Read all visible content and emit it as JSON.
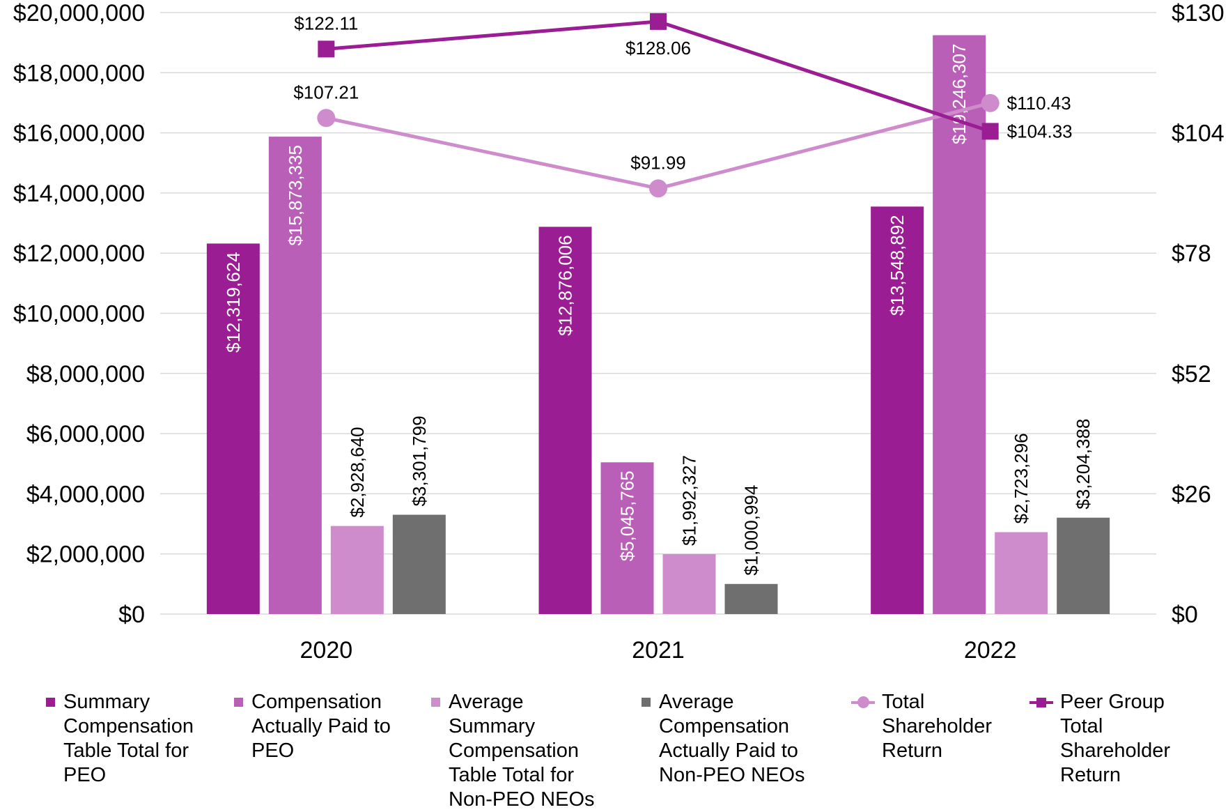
{
  "chart_data": {
    "type": "bar",
    "categories": [
      "2020",
      "2021",
      "2022"
    ],
    "left_axis": {
      "min": 0,
      "max": 20000000,
      "ticks": [
        "$0",
        "$2,000,000",
        "$4,000,000",
        "$6,000,000",
        "$8,000,000",
        "$10,000,000",
        "$12,000,000",
        "$14,000,000",
        "$16,000,000",
        "$18,000,000",
        "$20,000,000"
      ]
    },
    "right_axis": {
      "min": 0,
      "max": 130,
      "ticks": [
        "$0",
        "$26",
        "$52",
        "$78",
        "$104",
        "$130"
      ]
    },
    "grid": true,
    "legend_position": "bottom",
    "series": [
      {
        "name": "Summary Compensation Table Total for PEO",
        "kind": "bar",
        "axis": "left",
        "color": "#9b1d94",
        "values": [
          12319624,
          12876006,
          13548892
        ],
        "labels": [
          "$12,319,624",
          "$12,876,006",
          "$13,548,892"
        ]
      },
      {
        "name": "Compensation Actually Paid to PEO",
        "kind": "bar",
        "axis": "left",
        "color": "#b95fb8",
        "values": [
          15873335,
          5045765,
          19246307
        ],
        "labels": [
          "$15,873,335",
          "$5,045,765",
          "$19,246,307"
        ]
      },
      {
        "name": "Average Summary Compensation Table Total for Non-PEO NEOs",
        "kind": "bar",
        "axis": "left",
        "color": "#cf8ccd",
        "values": [
          2928640,
          1992327,
          2723296
        ],
        "labels": [
          "$2,928,640",
          "$1,992,327",
          "$2,723,296"
        ]
      },
      {
        "name": "Average Compensation Actually Paid to Non-PEO NEOs",
        "kind": "bar",
        "axis": "left",
        "color": "#706f70",
        "values": [
          3301799,
          1000994,
          3204388
        ],
        "labels": [
          "$3,301,799",
          "$1,000,994",
          "$3,204,388"
        ]
      },
      {
        "name": "Total Shareholder Return",
        "kind": "line",
        "axis": "right",
        "marker": "circle",
        "color": "#cf8ccd",
        "values": [
          107.21,
          91.99,
          110.43
        ],
        "labels": [
          "$107.21",
          "$91.99",
          "$110.43"
        ]
      },
      {
        "name": "Peer Group Total Shareholder Return",
        "kind": "line",
        "axis": "right",
        "marker": "square",
        "color": "#9b1d94",
        "values": [
          122.11,
          128.06,
          104.33
        ],
        "labels": [
          "$122.11",
          "$128.06",
          "$104.33"
        ]
      }
    ]
  },
  "legend": [
    {
      "lines": [
        "Summary",
        "Compensation",
        "Table Total for",
        "PEO"
      ]
    },
    {
      "lines": [
        "Compensation",
        "Actually Paid to",
        "PEO"
      ]
    },
    {
      "lines": [
        "Average",
        "Summary",
        "Compensation",
        "Table Total for",
        "Non-PEO NEOs"
      ]
    },
    {
      "lines": [
        "Average",
        "Compensation",
        "Actually Paid to",
        "Non-PEO NEOs"
      ]
    },
    {
      "lines": [
        "Total",
        "Shareholder",
        "Return"
      ]
    },
    {
      "lines": [
        "Peer Group",
        "Total",
        "Shareholder",
        "Return"
      ]
    }
  ]
}
